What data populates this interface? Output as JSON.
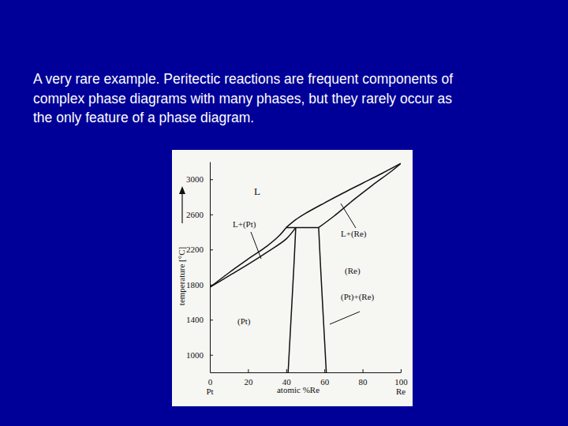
{
  "caption": [
    "A very rare example. Peritectic reactions are frequent components of",
    "complex phase diagrams with many phases, but they rarely occur as",
    "the only feature of a phase diagram."
  ],
  "chart_data": {
    "type": "line",
    "xlabel": "atomic %Re",
    "ylabel": "temperature [°C]",
    "xlim": [
      0,
      100
    ],
    "ylim": [
      800,
      3200
    ],
    "xticks": [
      0,
      20,
      40,
      60,
      80,
      100
    ],
    "yticks": [
      1000,
      1400,
      1800,
      2200,
      2600,
      3000
    ],
    "annotations": [
      "L",
      "L+(Pt)",
      "L+(Re)",
      "(Re)",
      "(Pt)+(Re)",
      "(Pt)",
      "Pt",
      "Re"
    ],
    "series": [
      {
        "color": "#111111",
        "x": [
          0,
          10,
          20,
          30,
          36,
          40
        ],
        "values": [
          1769,
          1935,
          2090,
          2240,
          2350,
          2450
        ]
      },
      {
        "color": "#111111",
        "x": [
          0,
          10,
          20,
          30,
          40,
          45
        ],
        "values": [
          1769,
          1900,
          2030,
          2170,
          2320,
          2450
        ]
      },
      {
        "color": "#111111",
        "x": [
          40,
          57
        ],
        "values": [
          2450,
          2450
        ]
      },
      {
        "color": "#111111",
        "x": [
          40,
          45,
          50,
          60,
          70,
          80,
          90,
          100
        ],
        "values": [
          2450,
          2540,
          2610,
          2730,
          2845,
          2955,
          3065,
          3180
        ]
      },
      {
        "color": "#111111",
        "x": [
          57,
          65,
          75,
          85,
          95,
          100
        ],
        "values": [
          2450,
          2580,
          2760,
          2930,
          3090,
          3180
        ]
      },
      {
        "color": "#111111",
        "x": [
          45,
          44,
          42.5,
          41
        ],
        "values": [
          2450,
          2000,
          1400,
          800
        ]
      },
      {
        "color": "#111111",
        "x": [
          57,
          58,
          59.5,
          61
        ],
        "values": [
          2450,
          2000,
          1400,
          800
        ]
      }
    ]
  }
}
